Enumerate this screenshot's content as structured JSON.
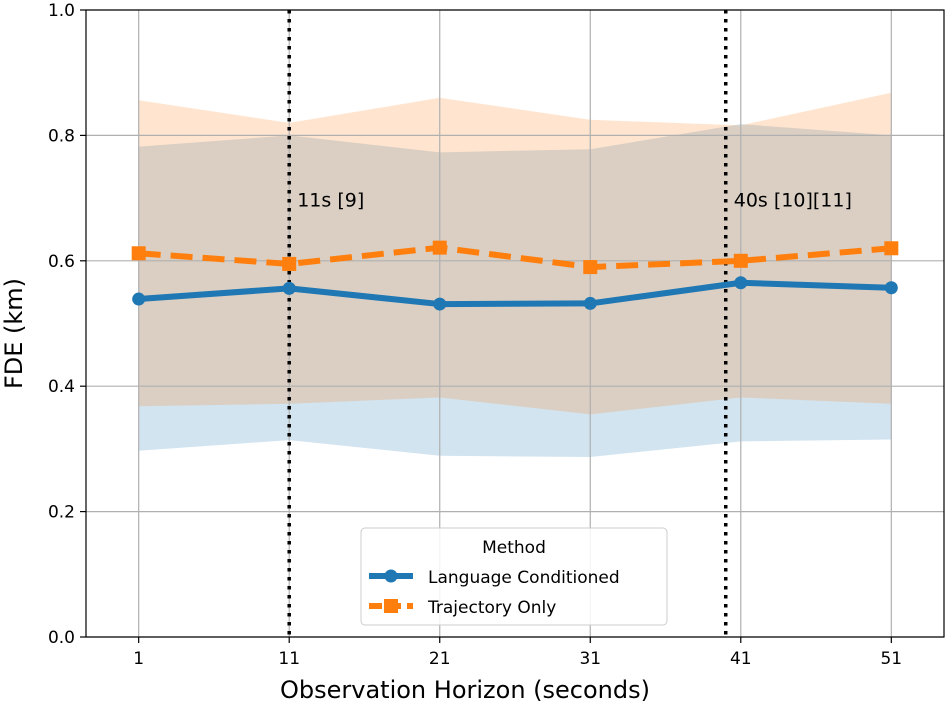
{
  "chart_data": {
    "type": "line",
    "title": "",
    "xlabel": "Observation Horizon (seconds)",
    "ylabel": "FDE (km)",
    "x": [
      1,
      11,
      21,
      31,
      41,
      51
    ],
    "x_ticks": [
      "1",
      "11",
      "21",
      "31",
      "41",
      "51"
    ],
    "xlim": [
      -2.5,
      54.5
    ],
    "ylim": [
      0.0,
      1.0
    ],
    "y_ticks": [
      "0.0",
      "0.2",
      "0.4",
      "0.6",
      "0.8",
      "1.0"
    ],
    "y_tick_values": [
      0.0,
      0.2,
      0.4,
      0.6,
      0.8,
      1.0
    ],
    "grid": true,
    "legend": {
      "title": "Method",
      "placement": "lower-center",
      "entries": [
        "Language Conditioned",
        "Trajectory Only"
      ]
    },
    "series": [
      {
        "name": "Language Conditioned",
        "color": "#1f77b4",
        "band_color": "#1f77b4",
        "linestyle": "solid",
        "marker": "circle",
        "values": [
          0.539,
          0.556,
          0.531,
          0.532,
          0.565,
          0.557
        ],
        "lower": [
          0.297,
          0.314,
          0.289,
          0.287,
          0.312,
          0.315
        ],
        "upper": [
          0.782,
          0.8,
          0.773,
          0.778,
          0.818,
          0.8
        ]
      },
      {
        "name": "Trajectory Only",
        "color": "#ff7f0e",
        "band_color": "#ff7f0e",
        "linestyle": "dashed",
        "marker": "square",
        "values": [
          0.612,
          0.595,
          0.621,
          0.59,
          0.6,
          0.62
        ],
        "lower": [
          0.368,
          0.372,
          0.382,
          0.355,
          0.382,
          0.372
        ],
        "upper": [
          0.856,
          0.82,
          0.86,
          0.825,
          0.816,
          0.868
        ]
      }
    ],
    "vlines": [
      {
        "x": 11,
        "label": "11s [9]"
      },
      {
        "x": 40,
        "label": "40s [10][11]"
      }
    ]
  }
}
